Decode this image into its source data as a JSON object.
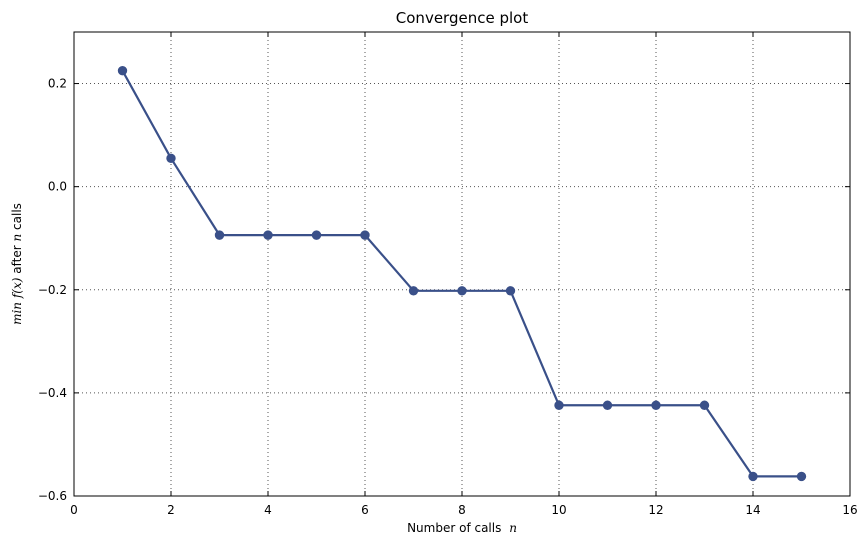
{
  "chart_data": {
    "type": "line",
    "title": "Convergence plot",
    "xlabel": {
      "text": "Number of calls",
      "math": "n"
    },
    "ylabel": {
      "prefix_math": "min f(x)",
      "middle_text": " after ",
      "suffix_math": "n",
      "end_text": " calls"
    },
    "xlim": [
      0,
      16
    ],
    "ylim": [
      -0.6,
      0.3
    ],
    "xticks": [
      0,
      2,
      4,
      6,
      8,
      10,
      12,
      14,
      16
    ],
    "yticks": [
      -0.6,
      -0.4,
      -0.2,
      0.0,
      0.2
    ],
    "xtick_labels": [
      "0",
      "2",
      "4",
      "6",
      "8",
      "10",
      "12",
      "14",
      "16"
    ],
    "ytick_labels": [
      "−0.6",
      "−0.4",
      "−0.2",
      "0.0",
      "0.2"
    ],
    "grid": true,
    "series": [
      {
        "x": [
          1,
          2,
          3,
          4,
          5,
          6,
          7,
          8,
          9,
          10,
          11,
          12,
          13,
          14,
          15
        ],
        "y": [
          0.225,
          0.055,
          -0.094,
          -0.094,
          -0.094,
          -0.094,
          -0.202,
          -0.202,
          -0.202,
          -0.424,
          -0.424,
          -0.424,
          -0.424,
          -0.562,
          -0.562
        ],
        "color": "#3a5089"
      }
    ]
  }
}
